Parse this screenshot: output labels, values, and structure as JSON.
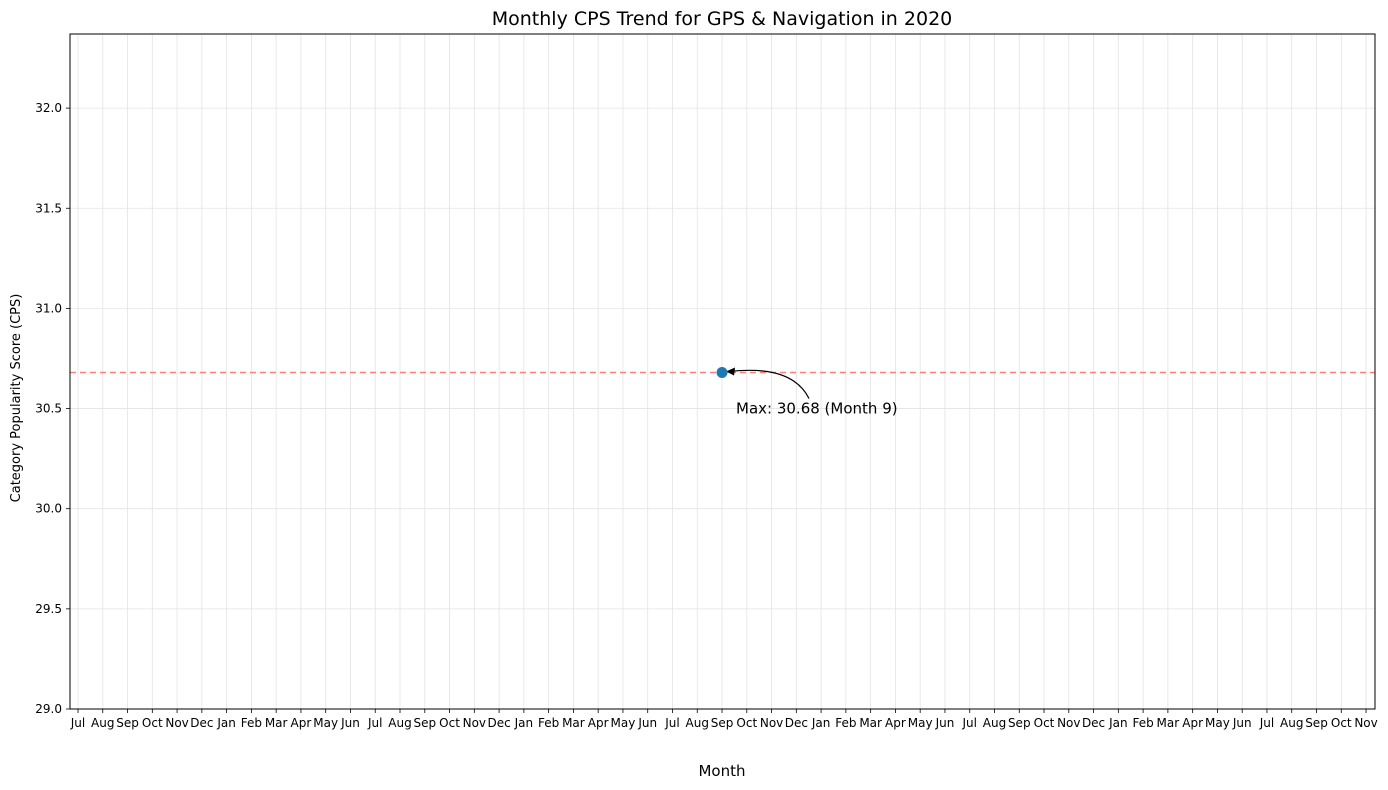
{
  "chart_data": {
    "type": "line",
    "title": "Monthly CPS Trend for GPS & Navigation in 2020",
    "xlabel": "Month",
    "ylabel": "Category Popularity Score (CPS)",
    "x_tick_labels": [
      "Jul",
      "Aug",
      "Sep",
      "Oct",
      "Nov",
      "Dec",
      "Jan",
      "Feb",
      "Mar",
      "Apr",
      "May",
      "Jun",
      "Jul",
      "Aug",
      "Sep",
      "Oct",
      "Nov",
      "Dec",
      "Jan",
      "Feb",
      "Mar",
      "Apr",
      "May",
      "Jun",
      "Jul",
      "Aug",
      "Sep",
      "Oct",
      "Nov",
      "Dec",
      "Jan",
      "Feb",
      "Mar",
      "Apr",
      "May",
      "Jun",
      "Jul",
      "Aug",
      "Sep",
      "Oct",
      "Nov",
      "Dec",
      "Jan",
      "Feb",
      "Mar",
      "Apr",
      "May",
      "Jun",
      "Jul",
      "Aug",
      "Sep",
      "Oct",
      "Nov"
    ],
    "ylim": [
      29.0,
      32.37
    ],
    "y_ticks": [
      "29.0",
      "29.5",
      "30.0",
      "30.5",
      "31.0",
      "31.5",
      "32.0"
    ],
    "grid": true,
    "series": [
      {
        "points": [
          {
            "x": "Sep",
            "y": 30.68
          }
        ],
        "color": "#1f77b4"
      }
    ],
    "reference_line": {
      "y": 30.68,
      "color": "#ff7f7f",
      "style": "dashed"
    },
    "annotation": {
      "text": "Max: 30.68 (Month 9)",
      "x": "Sep",
      "y": 30.68
    },
    "point_tick_index": 26
  }
}
